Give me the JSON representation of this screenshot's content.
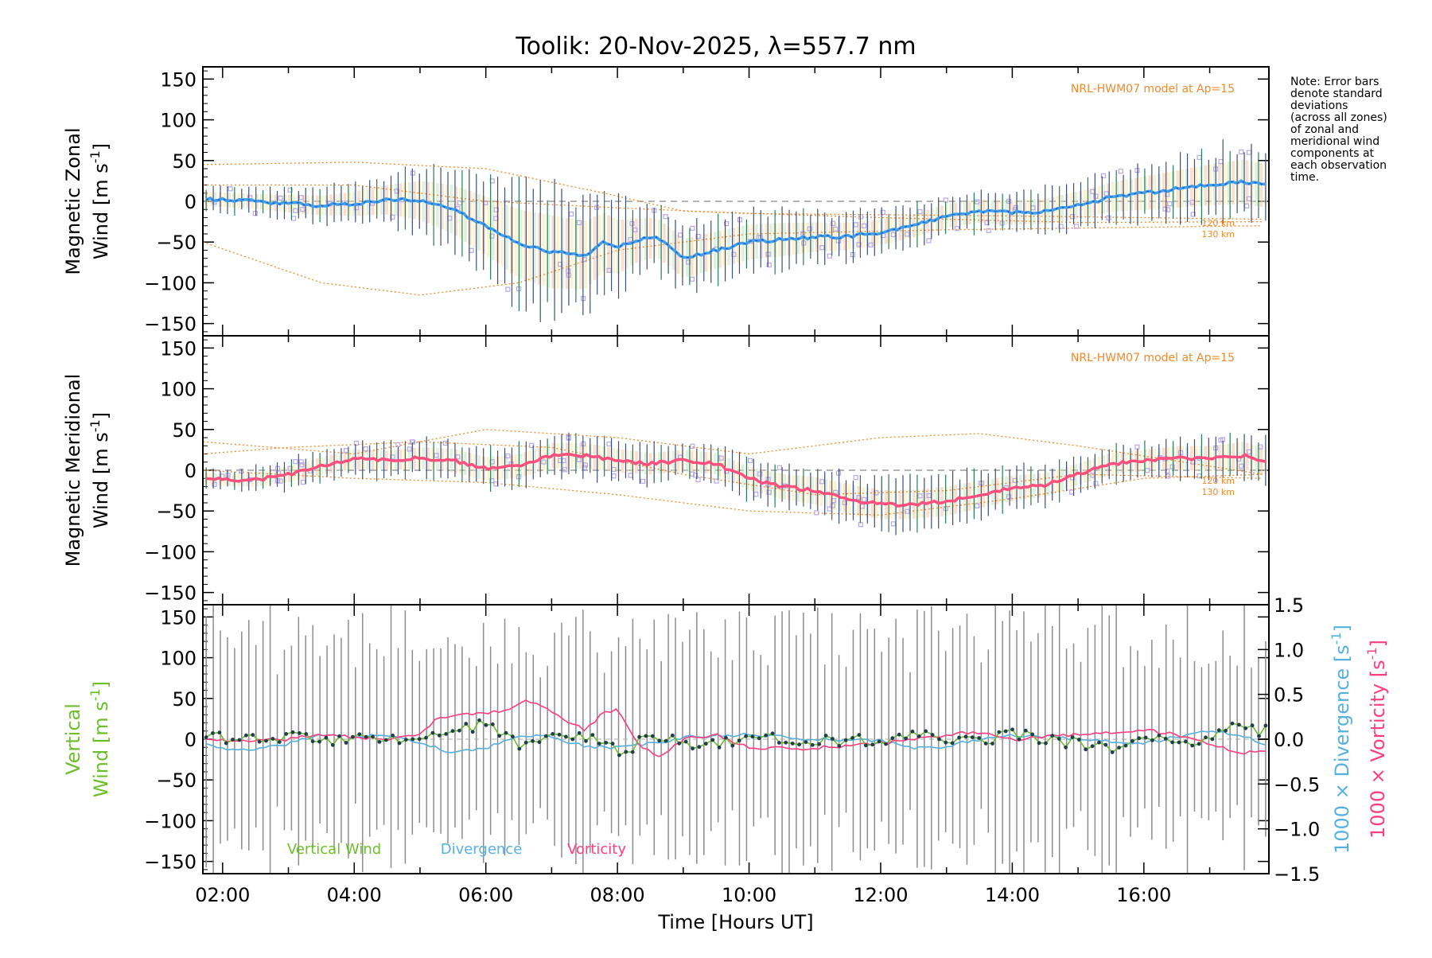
{
  "title": "Toolik: 20-Nov-2025, λ=557.7 nm",
  "note": "Note: Error bars\ndenote standard\ndeviations\n(across all zones)\nof zonal and\nmeridional wind\ncomponents at\neach observation\ntime.",
  "colors": {
    "zonal": "#3fa0e8",
    "zonal_dark": "#1f4fd6",
    "meridional": "#ff4f7e",
    "vertical": "#6cbf2a",
    "divergence": "#56b0e0",
    "vorticity": "#ff3d7f",
    "model": "#f08a2a",
    "errbar": "#3a4f7c",
    "zone_points": "#b8a8e6",
    "vert_err": "#8c8c8c"
  },
  "chart_data": [
    {
      "type": "line",
      "panel": "zonal",
      "title": "NRL-HWM07 model at Ap=15",
      "ylabel_line1": "Magnetic Zonal",
      "ylabel_line2": "Wind [m s",
      "ylabel_sup": "-1",
      "ylabel_close": "]",
      "ylim": [
        -165,
        165
      ],
      "yticks": [
        150,
        100,
        50,
        0,
        -50,
        -100,
        -150
      ],
      "model_labels": [
        "120 km",
        "130 km"
      ],
      "x_hours": [
        1.75,
        2.0,
        2.5,
        3.0,
        3.5,
        4.0,
        4.5,
        5.0,
        5.5,
        6.0,
        6.5,
        7.0,
        7.5,
        7.8,
        8.0,
        8.3,
        8.6,
        9.0,
        9.5,
        10.0,
        10.5,
        11.0,
        11.5,
        12.0,
        12.5,
        13.0,
        13.5,
        14.0,
        14.5,
        15.0,
        15.5,
        16.0,
        16.5,
        17.0,
        17.5,
        17.8
      ],
      "y": [
        3,
        2,
        0,
        -3,
        -5,
        -3,
        2,
        1,
        -10,
        -30,
        -52,
        -62,
        -66,
        -50,
        -56,
        -48,
        -44,
        -70,
        -60,
        -50,
        -47,
        -44,
        -43,
        -38,
        -30,
        -18,
        -12,
        -14,
        -12,
        -5,
        5,
        10,
        15,
        20,
        24,
        20
      ],
      "err": [
        15,
        15,
        15,
        18,
        20,
        25,
        30,
        40,
        50,
        60,
        70,
        75,
        70,
        60,
        55,
        45,
        40,
        40,
        38,
        36,
        34,
        30,
        28,
        26,
        24,
        24,
        24,
        25,
        26,
        28,
        30,
        34,
        38,
        42,
        45,
        45
      ]
    },
    {
      "type": "line",
      "panel": "meridional",
      "title": "NRL-HWM07 model at Ap=15",
      "ylabel_line1": "Magnetic Meridional",
      "ylabel_line2": "Wind [m s",
      "ylabel_sup": "-1",
      "ylabel_close": "]",
      "ylim": [
        -165,
        165
      ],
      "yticks": [
        150,
        100,
        50,
        0,
        -50,
        -100,
        -150
      ],
      "model_labels": [
        "120 km",
        "130 km"
      ],
      "x_hours": [
        1.75,
        2.0,
        2.5,
        3.0,
        3.5,
        4.0,
        4.5,
        5.0,
        5.5,
        6.0,
        6.5,
        7.0,
        7.5,
        8.0,
        8.5,
        9.0,
        9.5,
        10.0,
        10.5,
        11.0,
        11.5,
        12.0,
        12.5,
        13.0,
        13.5,
        14.0,
        14.5,
        15.0,
        15.5,
        16.0,
        16.5,
        17.0,
        17.5,
        17.8
      ],
      "y": [
        -10,
        -12,
        -12,
        -5,
        5,
        14,
        12,
        15,
        12,
        2,
        5,
        18,
        18,
        12,
        8,
        12,
        8,
        -10,
        -20,
        -25,
        -35,
        -42,
        -42,
        -38,
        -30,
        -22,
        -18,
        -5,
        8,
        12,
        15,
        14,
        18,
        12
      ],
      "err": [
        12,
        12,
        14,
        16,
        18,
        20,
        20,
        22,
        24,
        24,
        24,
        26,
        26,
        24,
        22,
        22,
        22,
        24,
        26,
        28,
        30,
        30,
        30,
        30,
        28,
        26,
        24,
        22,
        22,
        22,
        24,
        26,
        28,
        28
      ]
    },
    {
      "type": "line",
      "panel": "vertical",
      "ylabel_line1": "Vertical",
      "ylabel_line2": "Wind [m s",
      "ylabel_sup": "-1",
      "ylabel_close": "]",
      "ylim": [
        -165,
        165
      ],
      "yticks": [
        150,
        100,
        50,
        0,
        -50,
        -100,
        -150
      ],
      "right_ylim": [
        -1.5,
        1.5
      ],
      "right_yticks": [
        "1.5",
        "1.0",
        "0.5",
        "0.0",
        "−0.5",
        "−1.0",
        "−1.5"
      ],
      "right_label_div": "1000 × Divergence [s",
      "right_label_vort": "1000 × Vorticity [s",
      "right_label_sup": "-1",
      "right_label_close": "]",
      "legend": [
        "Vertical Wind",
        "Divergence",
        "Vorticity"
      ],
      "xlabel": "Time [Hours UT]",
      "xticks": [
        "02:00",
        "04:00",
        "06:00",
        "08:00",
        "10:00",
        "12:00",
        "14:00",
        "16:00"
      ],
      "xlim_hours": [
        1.7,
        17.9
      ],
      "vertical_x": [
        1.75,
        2.5,
        3.0,
        3.5,
        4.0,
        4.5,
        5.0,
        5.5,
        6.0,
        6.5,
        7.0,
        7.5,
        8.0,
        8.1,
        8.4,
        8.8,
        9.2,
        10.0,
        11.0,
        12.0,
        12.5,
        13.0,
        13.5,
        14.0,
        14.5,
        15.0,
        15.5,
        16.0,
        16.5,
        17.0,
        17.3,
        17.8
      ],
      "vertical_y": [
        3,
        -2,
        5,
        -5,
        0,
        -3,
        5,
        12,
        18,
        -5,
        5,
        3,
        -10,
        -25,
        10,
        0,
        -8,
        2,
        -3,
        0,
        5,
        2,
        -4,
        8,
        0,
        -5,
        -10,
        4,
        -6,
        0,
        15,
        10
      ],
      "divergence_x": [
        1.75,
        2.0,
        2.5,
        3.0,
        3.5,
        4.0,
        4.5,
        5.0,
        5.5,
        6.0,
        6.5,
        7.0,
        7.5,
        8.0,
        8.5,
        9.0,
        10.0,
        11.0,
        12.0,
        12.5,
        13.0,
        13.5,
        14.0,
        15.0,
        16.0,
        17.0,
        17.5,
        17.8
      ],
      "divergence_y": [
        -0.05,
        -0.1,
        -0.12,
        -0.05,
        0.05,
        0.02,
        0.05,
        -0.05,
        -0.15,
        -0.1,
        0.05,
        0.02,
        -0.08,
        -0.1,
        -0.05,
        0.02,
        0.05,
        0.0,
        -0.02,
        -0.1,
        -0.08,
        0.0,
        0.05,
        0.0,
        -0.05,
        0.1,
        0.05,
        -0.05
      ],
      "vorticity_x": [
        1.75,
        2.5,
        3.0,
        3.5,
        4.0,
        4.5,
        5.0,
        5.3,
        5.8,
        6.3,
        6.6,
        7.0,
        7.5,
        7.8,
        8.0,
        8.3,
        8.6,
        9.0,
        9.5,
        10.0,
        11.0,
        12.0,
        13.0,
        13.5,
        14.0,
        15.0,
        16.0,
        16.5,
        17.0,
        17.5,
        17.8
      ],
      "vorticity_y": [
        0.0,
        -0.02,
        0.0,
        0.05,
        0.02,
        0.0,
        0.05,
        0.25,
        0.28,
        0.32,
        0.45,
        0.3,
        0.1,
        0.3,
        0.32,
        -0.05,
        -0.2,
        0.0,
        0.05,
        -0.1,
        -0.1,
        -0.05,
        0.05,
        0.08,
        0.0,
        0.05,
        0.1,
        0.05,
        -0.05,
        -0.15,
        -0.12
      ]
    }
  ]
}
